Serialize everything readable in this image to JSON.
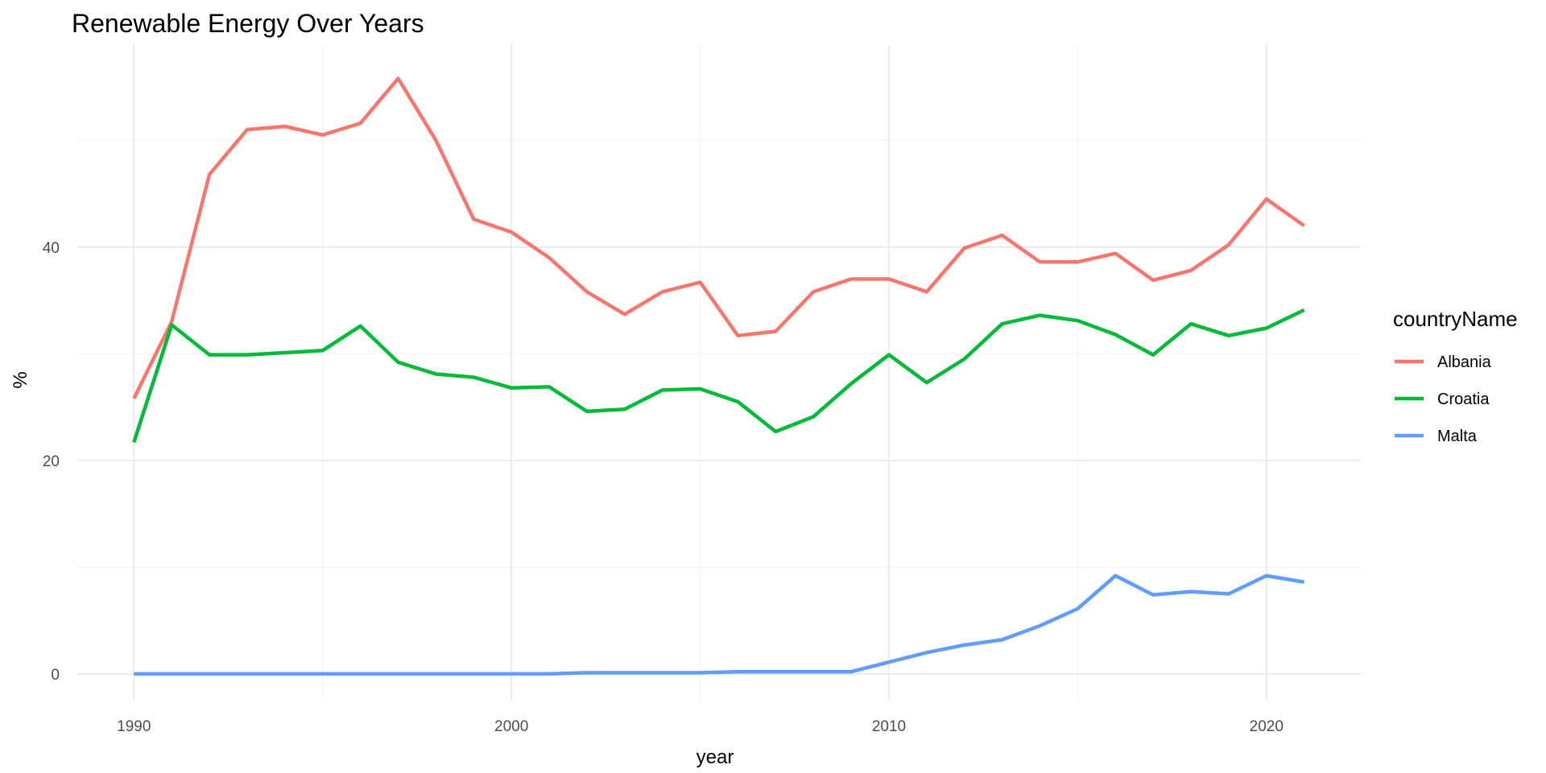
{
  "chart_data": {
    "type": "line",
    "title": "Renewable Energy Over Years",
    "xlabel": "year",
    "ylabel": "%",
    "xlim": [
      1988.5,
      2022.5
    ],
    "ylim": [
      -2.5,
      59
    ],
    "x_ticks": [
      1990,
      2000,
      2010,
      2020
    ],
    "x_minor": [
      1995,
      2005,
      2015
    ],
    "y_ticks": [
      0,
      20,
      40
    ],
    "y_minor": [
      10,
      30,
      50
    ],
    "grid": true,
    "legend": {
      "title": "countryName",
      "position": "right"
    },
    "x": [
      1990,
      1991,
      1992,
      1993,
      1994,
      1995,
      1996,
      1997,
      1998,
      1999,
      2000,
      2001,
      2002,
      2003,
      2004,
      2005,
      2006,
      2007,
      2008,
      2009,
      2010,
      2011,
      2012,
      2013,
      2014,
      2015,
      2016,
      2017,
      2018,
      2019,
      2020,
      2021
    ],
    "series": [
      {
        "name": "Albania",
        "color": "#F8766D",
        "values": [
          25.8,
          33.0,
          46.8,
          51.0,
          51.3,
          50.5,
          51.6,
          55.8,
          50.0,
          42.6,
          41.4,
          39.0,
          35.8,
          33.7,
          35.8,
          36.7,
          31.7,
          32.1,
          35.8,
          37.0,
          37.0,
          35.8,
          39.9,
          41.1,
          38.6,
          38.6,
          39.4,
          36.9,
          37.8,
          40.2,
          44.5,
          42.0
        ]
      },
      {
        "name": "Croatia",
        "color": "#00BA38",
        "values": [
          21.7,
          32.7,
          29.9,
          29.9,
          30.1,
          30.3,
          32.6,
          29.2,
          28.1,
          27.8,
          26.8,
          26.9,
          24.6,
          24.8,
          26.6,
          26.7,
          25.5,
          22.7,
          24.1,
          27.2,
          29.9,
          27.3,
          29.5,
          32.8,
          33.6,
          33.1,
          31.8,
          29.9,
          32.8,
          31.7,
          32.4,
          34.1
        ]
      },
      {
        "name": "Malta",
        "color": "#619CFF",
        "values": [
          0.0,
          0.0,
          0.0,
          0.0,
          0.0,
          0.0,
          0.0,
          0.0,
          0.0,
          0.0,
          0.0,
          0.0,
          0.1,
          0.1,
          0.1,
          0.1,
          0.2,
          0.2,
          0.2,
          0.2,
          1.1,
          2.0,
          2.7,
          3.2,
          4.5,
          6.1,
          9.2,
          7.4,
          7.7,
          7.5,
          9.2,
          8.6
        ]
      }
    ]
  }
}
